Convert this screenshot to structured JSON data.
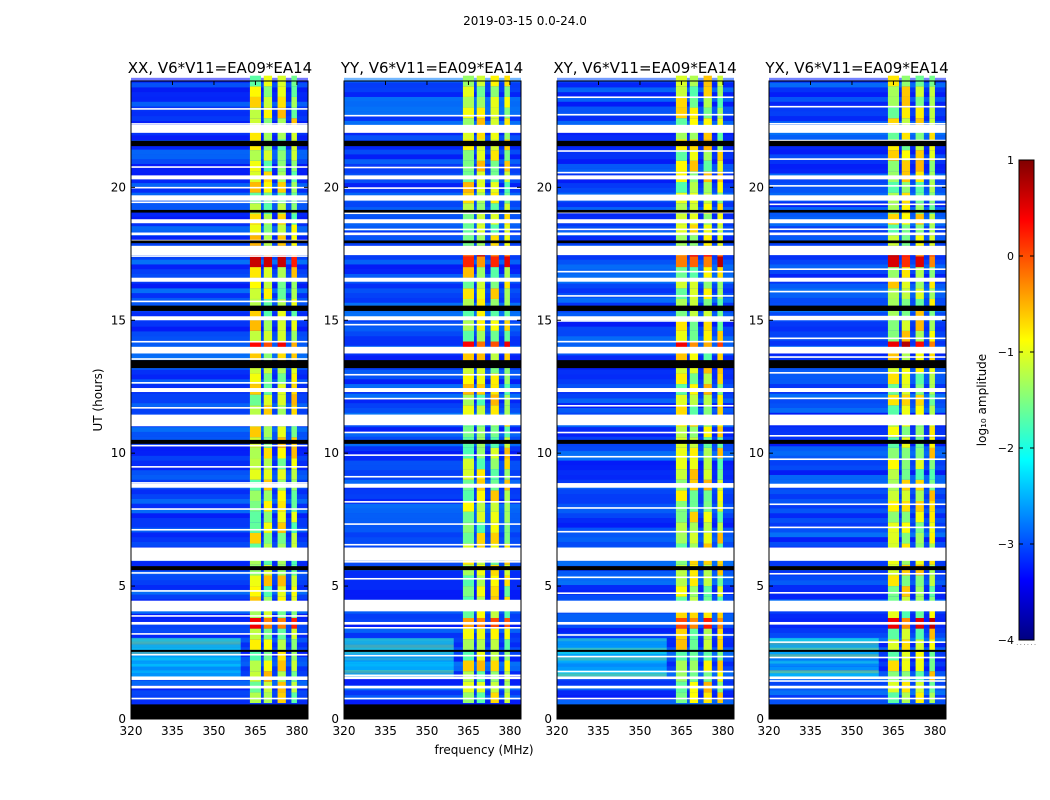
{
  "figure": {
    "suptitle": "2019-03-15 0.0-24.0",
    "xlabel": "frequency (MHz)",
    "ylabel": "UT (hours)",
    "colorbar_label": "log₁₀ amplitude",
    "colorbar_dots": "......"
  },
  "chart_data": [
    {
      "type": "heatmap",
      "title": "XX, V6*V11=EA09*EA14",
      "xlabel": "frequency (MHz)",
      "ylabel": "UT (hours)",
      "xlim": [
        320,
        384
      ],
      "ylim": [
        0,
        24
      ],
      "xticks": [
        320,
        335,
        350,
        365,
        380
      ],
      "yticks": [
        0,
        5,
        10,
        15,
        20
      ],
      "colorscale": "jet",
      "zlim": [
        -4,
        1
      ]
    },
    {
      "type": "heatmap",
      "title": "YY, V6*V11=EA09*EA14",
      "xlabel": "",
      "ylabel": "",
      "xlim": [
        320,
        384
      ],
      "ylim": [
        0,
        24
      ],
      "xticks": [
        320,
        335,
        350,
        365,
        380
      ],
      "yticks": [
        0,
        5,
        10,
        15,
        20
      ],
      "colorscale": "jet",
      "zlim": [
        -4,
        1
      ]
    },
    {
      "type": "heatmap",
      "title": "XY, V6*V11=EA09*EA14",
      "xlabel": "",
      "ylabel": "",
      "xlim": [
        320,
        384
      ],
      "ylim": [
        0,
        24
      ],
      "xticks": [
        320,
        335,
        350,
        365,
        380
      ],
      "yticks": [
        0,
        5,
        10,
        15,
        20
      ],
      "colorscale": "jet",
      "zlim": [
        -4,
        1
      ]
    },
    {
      "type": "heatmap",
      "title": "YX, V6*V11=EA09*EA14",
      "xlabel": "",
      "ylabel": "",
      "xlim": [
        320,
        384
      ],
      "ylim": [
        0,
        24
      ],
      "xticks": [
        320,
        335,
        350,
        365,
        380
      ],
      "yticks": [
        0,
        5,
        10,
        15,
        20
      ],
      "colorscale": "jet",
      "zlim": [
        -4,
        1
      ]
    }
  ],
  "colorbar": {
    "ticks": [
      1,
      0,
      -1,
      -2,
      -3,
      -4
    ],
    "tick_labels": [
      "1",
      "0",
      "−1",
      "−2",
      "−3",
      "−4"
    ],
    "colors": [
      "#800000",
      "#ff0000",
      "#ff8000",
      "#ffff00",
      "#80ff80",
      "#00ffff",
      "#0080ff",
      "#0000ff",
      "#000080"
    ]
  },
  "data_features": {
    "flagged_ut_bands": [
      [
        0.0,
        0.55
      ],
      [
        1.15,
        1.25
      ],
      [
        1.5,
        1.6
      ],
      [
        2.55,
        2.6
      ],
      [
        3.55,
        3.65
      ],
      [
        4.05,
        4.45
      ],
      [
        5.6,
        5.75
      ],
      [
        5.95,
        6.45
      ],
      [
        8.7,
        8.85
      ],
      [
        10.35,
        10.5
      ],
      [
        11.05,
        11.45
      ],
      [
        12.3,
        12.45
      ],
      [
        13.2,
        13.5
      ],
      [
        13.75,
        14.0
      ],
      [
        15.0,
        15.15
      ],
      [
        15.35,
        15.55
      ],
      [
        16.45,
        16.6
      ],
      [
        17.45,
        17.8
      ],
      [
        17.9,
        18.0
      ],
      [
        18.2,
        18.3
      ],
      [
        18.65,
        18.8
      ],
      [
        19.05,
        19.15
      ],
      [
        19.5,
        19.7
      ],
      [
        20.3,
        20.45
      ],
      [
        21.55,
        21.75
      ],
      [
        22.05,
        22.35
      ]
    ],
    "rfi_channels_mhz": [
      [
        363,
        367
      ],
      [
        368,
        371
      ],
      [
        373,
        376
      ],
      [
        378,
        380
      ]
    ]
  }
}
